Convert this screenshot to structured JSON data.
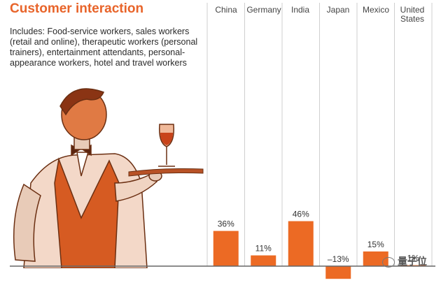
{
  "title": "Customer interaction",
  "description": "Includes: Food-service workers, sales workers (retail and online), therapeutic workers (personal trainers), entertainment attendants, personal-appearance workers, hotel and travel workers",
  "colors": {
    "accent": "#e8642a",
    "bar": "#ec6a24",
    "axis": "#666666",
    "divider": "#cfcfcf"
  },
  "illustration": "waiter-with-wine-tray",
  "watermark": {
    "text": "量子位",
    "icon": "wechat-icon"
  },
  "chart_data": {
    "type": "bar",
    "categories": [
      "China",
      "Germany",
      "India",
      "Japan",
      "Mexico",
      "United States"
    ],
    "values": [
      36,
      11,
      46,
      -13,
      15,
      1
    ],
    "value_labels": [
      "36%",
      "11%",
      "46%",
      "–13%",
      "15%",
      "1%"
    ],
    "title": "Customer interaction",
    "xlabel": "",
    "ylabel": "",
    "ylim": [
      -15,
      50
    ],
    "grid": false
  }
}
